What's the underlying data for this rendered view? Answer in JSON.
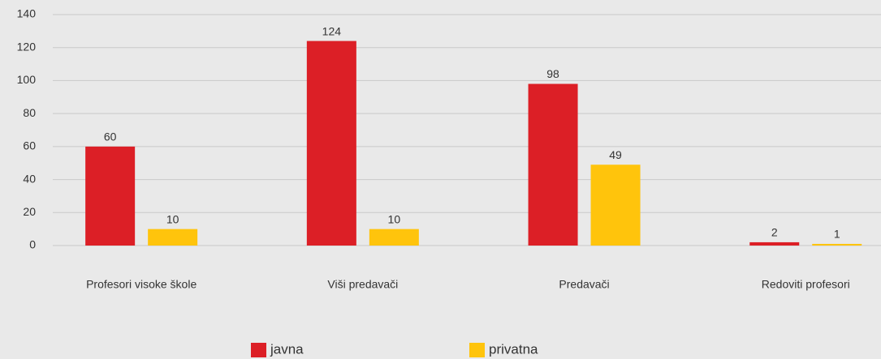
{
  "chart_data": {
    "type": "bar",
    "categories": [
      "Profesori visoke škole",
      "Viši predavači",
      "Predavači",
      "Redoviti profesori"
    ],
    "series": [
      {
        "name": "javna",
        "color": "#dc1f26",
        "values": [
          60,
          124,
          98,
          2
        ]
      },
      {
        "name": "privatna",
        "color": "#ffc40c",
        "values": [
          10,
          10,
          49,
          1
        ]
      }
    ],
    "ylim": [
      0,
      140
    ],
    "yticks": [
      0,
      20,
      40,
      60,
      80,
      100,
      120,
      140
    ],
    "grid": true,
    "legend": "bottom"
  }
}
